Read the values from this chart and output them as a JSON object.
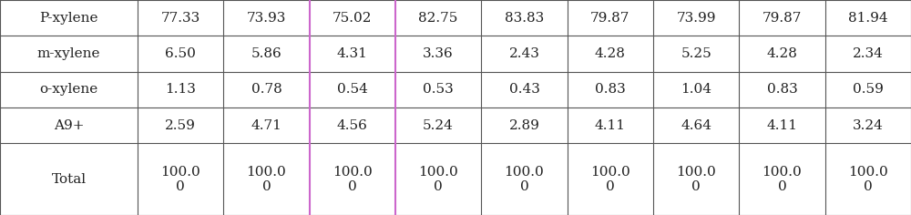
{
  "rows": [
    {
      "label": "P-xylene",
      "values": [
        "77.33",
        "73.93",
        "75.02",
        "82.75",
        "83.83",
        "79.87",
        "73.99",
        "79.87",
        "81.94"
      ]
    },
    {
      "label": "m-xylene",
      "values": [
        "6.50",
        "5.86",
        "4.31",
        "3.36",
        "2.43",
        "4.28",
        "5.25",
        "4.28",
        "2.34"
      ]
    },
    {
      "label": "o-xylene",
      "values": [
        "1.13",
        "0.78",
        "0.54",
        "0.53",
        "0.43",
        "0.83",
        "1.04",
        "0.83",
        "0.59"
      ]
    },
    {
      "label": "A9+",
      "values": [
        "2.59",
        "4.71",
        "4.56",
        "5.24",
        "2.89",
        "4.11",
        "4.64",
        "4.11",
        "3.24"
      ]
    },
    {
      "label": "Total",
      "values": [
        "100.0\n0",
        "100.0\n0",
        "100.0\n0",
        "100.0\n0",
        "100.0\n0",
        "100.0\n0",
        "100.0\n0",
        "100.0\n0",
        "100.0\n0"
      ]
    }
  ],
  "row_heights": [
    1,
    1,
    1,
    1,
    2
  ],
  "col_widths": [
    1.6,
    1.0,
    1.0,
    1.0,
    1.0,
    1.0,
    1.0,
    1.0,
    1.0,
    1.0
  ],
  "font_size": 11,
  "text_color": "#222222",
  "border_color": "#555555",
  "bg_color": "#ffffff",
  "highlight_col": 3,
  "highlight_color": "#cc66cc"
}
